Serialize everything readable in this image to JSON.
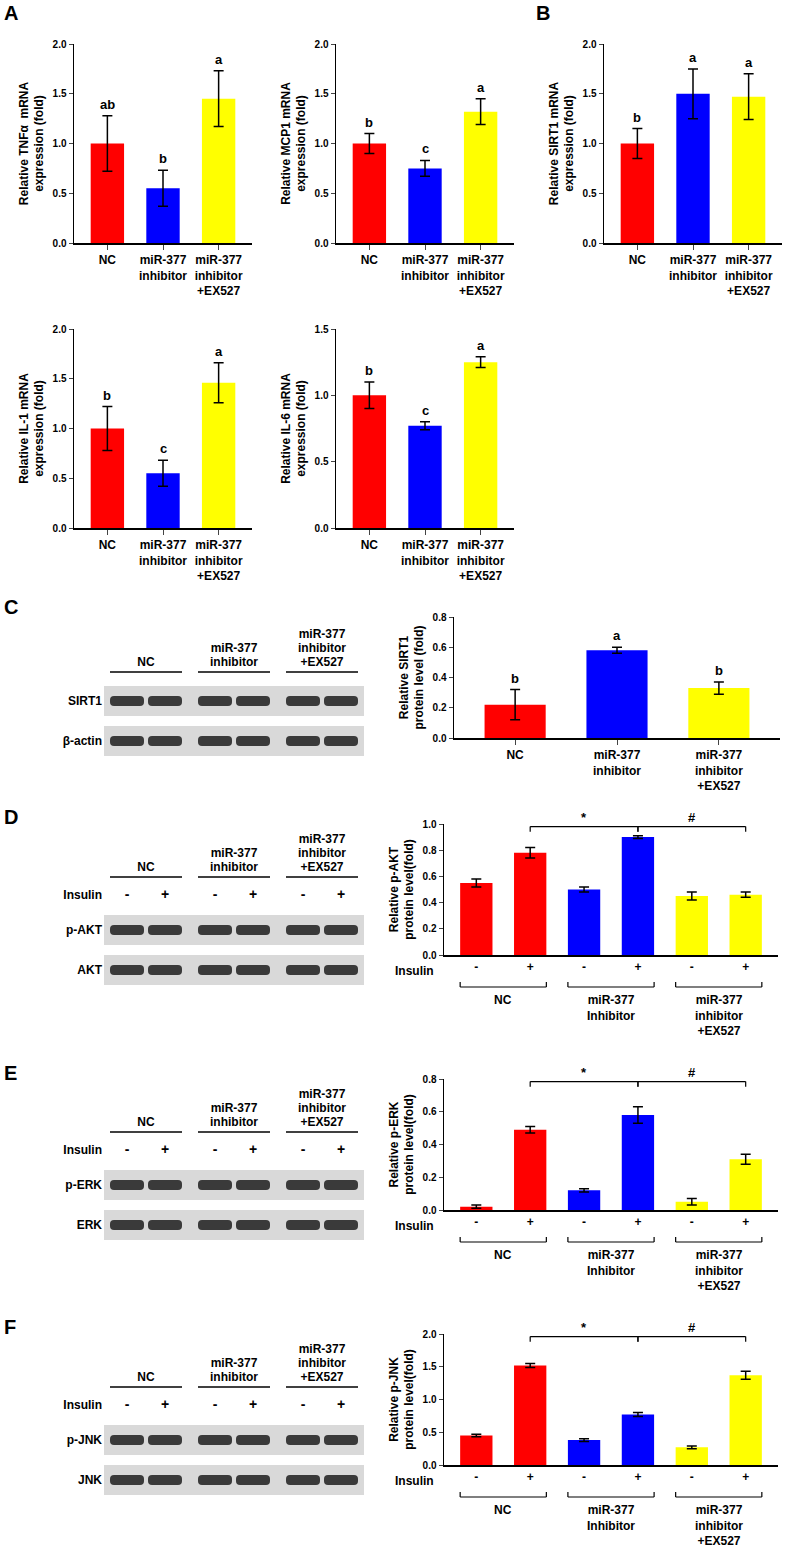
{
  "panel_labels": [
    "A",
    "B",
    "C",
    "D",
    "E",
    "F"
  ],
  "chart_data": [
    {
      "type": "bar",
      "y_label": [
        "Relative TNFα  mRNA",
        "expression (fold)"
      ],
      "categories": [
        "NC",
        "miR-377 inhibitor",
        "miR-377 inhibitor +EX527"
      ],
      "values": [
        1.0,
        0.55,
        1.45
      ],
      "errors": [
        0.28,
        0.18,
        0.28
      ],
      "annotations": [
        "ab",
        "b",
        "a"
      ],
      "colors": [
        "#ff0000",
        "#0000ff",
        "#ffff00"
      ],
      "ylim": [
        0,
        2
      ],
      "yticks": [
        {
          "value": 0,
          "label": "0.0"
        },
        0.5,
        {
          "value": 1,
          "label": "1.0"
        },
        1.5,
        {
          "value": 2,
          "label": "2.0"
        }
      ]
    },
    {
      "type": "bar",
      "y_label": [
        "Relative MCP1 mRNA",
        "expression (fold)"
      ],
      "categories": [
        "NC",
        "miR-377 inhibitor",
        "miR-377 inhibitor +EX527"
      ],
      "values": [
        1.0,
        0.75,
        1.32
      ],
      "errors": [
        0.1,
        0.08,
        0.13
      ],
      "annotations": [
        "b",
        "c",
        "a"
      ],
      "colors": [
        "#ff0000",
        "#0000ff",
        "#ffff00"
      ],
      "ylim": [
        0,
        2
      ],
      "yticks": [
        {
          "value": 0,
          "label": "0.0"
        },
        0.5,
        {
          "value": 1,
          "label": "1.0"
        },
        1.5,
        {
          "value": 2,
          "label": "2.0"
        }
      ]
    },
    {
      "type": "bar",
      "y_label": [
        "Relative SIRT1 mRNA",
        "expression (fold)"
      ],
      "categories": [
        "NC",
        "miR-377 inhibitor",
        "miR-377 inhibitor +EX527"
      ],
      "values": [
        1.0,
        1.5,
        1.47
      ],
      "errors": [
        0.15,
        0.25,
        0.23
      ],
      "annotations": [
        "b",
        "a",
        "a"
      ],
      "colors": [
        "#ff0000",
        "#0000ff",
        "#ffff00"
      ],
      "ylim": [
        0,
        2
      ],
      "yticks": [
        {
          "value": 0,
          "label": "0.0"
        },
        0.5,
        {
          "value": 1,
          "label": "1.0"
        },
        1.5,
        {
          "value": 2,
          "label": "2.0"
        }
      ]
    },
    {
      "type": "bar",
      "y_label": [
        "Relative IL-1 mRNA",
        "expression (fold)"
      ],
      "categories": [
        "NC",
        "miR-377 inhibitor",
        "miR-377 inhibitor +EX527"
      ],
      "values": [
        1.0,
        0.55,
        1.46
      ],
      "errors": [
        0.22,
        0.13,
        0.2
      ],
      "annotations": [
        "b",
        "c",
        "a"
      ],
      "colors": [
        "#ff0000",
        "#0000ff",
        "#ffff00"
      ],
      "ylim": [
        0,
        2
      ],
      "yticks": [
        {
          "value": 0,
          "label": "0.0"
        },
        0.5,
        {
          "value": 1,
          "label": "1.0"
        },
        1.5,
        {
          "value": 2,
          "label": "2.0"
        }
      ]
    },
    {
      "type": "bar",
      "y_label": [
        "Relative IL-6 mRNA",
        "expression (fold)"
      ],
      "categories": [
        "NC",
        "miR-377 inhibitor",
        "miR-377 inhibitor +EX527"
      ],
      "values": [
        1.0,
        0.77,
        1.25
      ],
      "errors": [
        0.1,
        0.03,
        0.04
      ],
      "annotations": [
        "b",
        "c",
        "a"
      ],
      "colors": [
        "#ff0000",
        "#0000ff",
        "#ffff00"
      ],
      "ylim": [
        0,
        1.5
      ],
      "yticks": [
        {
          "value": 0,
          "label": "0.0"
        },
        0.5,
        {
          "value": 1,
          "label": "1.0"
        },
        1.5
      ]
    },
    {
      "type": "bar",
      "y_label": [
        "Relative SIRT1",
        "protein level (fold)"
      ],
      "categories": [
        "NC",
        "miR-377 inhibitor",
        "miR-377 inhibitor +EX527"
      ],
      "values": [
        0.22,
        0.58,
        0.33
      ],
      "errors": [
        0.1,
        0.02,
        0.04
      ],
      "annotations": [
        "b",
        "a",
        "b"
      ],
      "colors": [
        "#ff0000",
        "#0000ff",
        "#ffff00"
      ],
      "ylim": [
        0,
        0.8
      ],
      "yticks": [
        {
          "value": 0,
          "label": "0.0"
        },
        0.2,
        0.4,
        0.6,
        0.8
      ]
    },
    {
      "type": "bar",
      "y_label": [
        "Relative p-AKT",
        "protein level(fold)"
      ],
      "x_label": "Insulin",
      "categories": [
        "-",
        "+",
        "-",
        "+",
        "-",
        "+"
      ],
      "values": [
        0.55,
        0.78,
        0.5,
        0.9,
        0.45,
        0.46
      ],
      "errors": [
        0.03,
        0.04,
        0.02,
        0.01,
        0.03,
        0.02
      ],
      "colors": [
        "#ff0000",
        "#ff0000",
        "#0000ff",
        "#0000ff",
        "#ffff00",
        "#ffff00"
      ],
      "ylim": [
        0,
        1
      ],
      "yticks": [
        {
          "value": 0,
          "label": "0.0"
        },
        0.2,
        0.4,
        0.6,
        0.8,
        {
          "value": 1,
          "label": "1.0"
        }
      ],
      "groups": [
        {
          "label": "NC",
          "from": 0,
          "to": 1
        },
        {
          "label": "miR-377 Inhibitor",
          "from": 2,
          "to": 3
        },
        {
          "label": "miR-377 inhibitor +EX527",
          "from": 4,
          "to": 5
        }
      ],
      "comparisons": [
        {
          "from": 1,
          "to": 3,
          "label": "*"
        },
        {
          "from": 3,
          "to": 5,
          "label": "#"
        }
      ]
    },
    {
      "type": "bar",
      "y_label": [
        "Relative p-ERK",
        "protein level(fold)"
      ],
      "x_label": "Insulin",
      "categories": [
        "-",
        "+",
        "-",
        "+",
        "-",
        "+"
      ],
      "values": [
        0.02,
        0.49,
        0.12,
        0.58,
        0.05,
        0.31
      ],
      "errors": [
        0.01,
        0.02,
        0.01,
        0.05,
        0.02,
        0.03
      ],
      "colors": [
        "#ff0000",
        "#ff0000",
        "#0000ff",
        "#0000ff",
        "#ffff00",
        "#ffff00"
      ],
      "ylim": [
        0,
        0.8
      ],
      "yticks": [
        {
          "value": 0,
          "label": "0.0"
        },
        0.2,
        0.4,
        0.6,
        0.8
      ],
      "groups": [
        {
          "label": "NC",
          "from": 0,
          "to": 1
        },
        {
          "label": "miR-377 Inhibitor",
          "from": 2,
          "to": 3
        },
        {
          "label": "miR-377 inhibitor +EX527",
          "from": 4,
          "to": 5
        }
      ],
      "comparisons": [
        {
          "from": 1,
          "to": 3,
          "label": "*"
        },
        {
          "from": 3,
          "to": 5,
          "label": "#"
        }
      ]
    },
    {
      "type": "bar",
      "y_label": [
        "Relative p-JNK",
        "protein level(fold)"
      ],
      "x_label": "Insulin",
      "categories": [
        "-",
        "+",
        "-",
        "+",
        "-",
        "+"
      ],
      "values": [
        0.45,
        1.52,
        0.38,
        0.77,
        0.27,
        1.37
      ],
      "errors": [
        0.02,
        0.03,
        0.02,
        0.03,
        0.02,
        0.06
      ],
      "colors": [
        "#ff0000",
        "#ff0000",
        "#0000ff",
        "#0000ff",
        "#ffff00",
        "#ffff00"
      ],
      "ylim": [
        0,
        2
      ],
      "yticks": [
        {
          "value": 0,
          "label": "0.0"
        },
        0.5,
        {
          "value": 1,
          "label": "1.0"
        },
        1.5,
        {
          "value": 2,
          "label": "2.0"
        }
      ],
      "groups": [
        {
          "label": "NC",
          "from": 0,
          "to": 1
        },
        {
          "label": "miR-377 Inhibitor",
          "from": 2,
          "to": 3
        },
        {
          "label": "miR-377 inhibitor +EX527",
          "from": 4,
          "to": 5
        }
      ],
      "comparisons": [
        {
          "from": 1,
          "to": 3,
          "label": "*"
        },
        {
          "from": 3,
          "to": 5,
          "label": "#"
        }
      ]
    }
  ],
  "blots": [
    {
      "groups": [
        "NC",
        "miR-377 inhibitor",
        "miR-377 inhibitor +EX527"
      ],
      "rows": [
        "SIRT1",
        "β-actin"
      ]
    },
    {
      "groups": [
        "NC",
        "miR-377 inhibitor",
        "miR-377 inhibitor +EX527"
      ],
      "treatment": "Insulin",
      "lanes": [
        "-",
        "+",
        "-",
        "+",
        "-",
        "+"
      ],
      "rows": [
        "p-AKT",
        "AKT"
      ]
    },
    {
      "groups": [
        "NC",
        "miR-377 inhibitor",
        "miR-377 inhibitor +EX527"
      ],
      "treatment": "Insulin",
      "lanes": [
        "-",
        "+",
        "-",
        "+",
        "-",
        "+"
      ],
      "rows": [
        "p-ERK",
        "ERK"
      ]
    },
    {
      "groups": [
        "NC",
        "miR-377 inhibitor",
        "miR-377 inhibitor +EX527"
      ],
      "treatment": "Insulin",
      "lanes": [
        "-",
        "+",
        "-",
        "+",
        "-",
        "+"
      ],
      "rows": [
        "p-JNK",
        "JNK"
      ]
    }
  ]
}
